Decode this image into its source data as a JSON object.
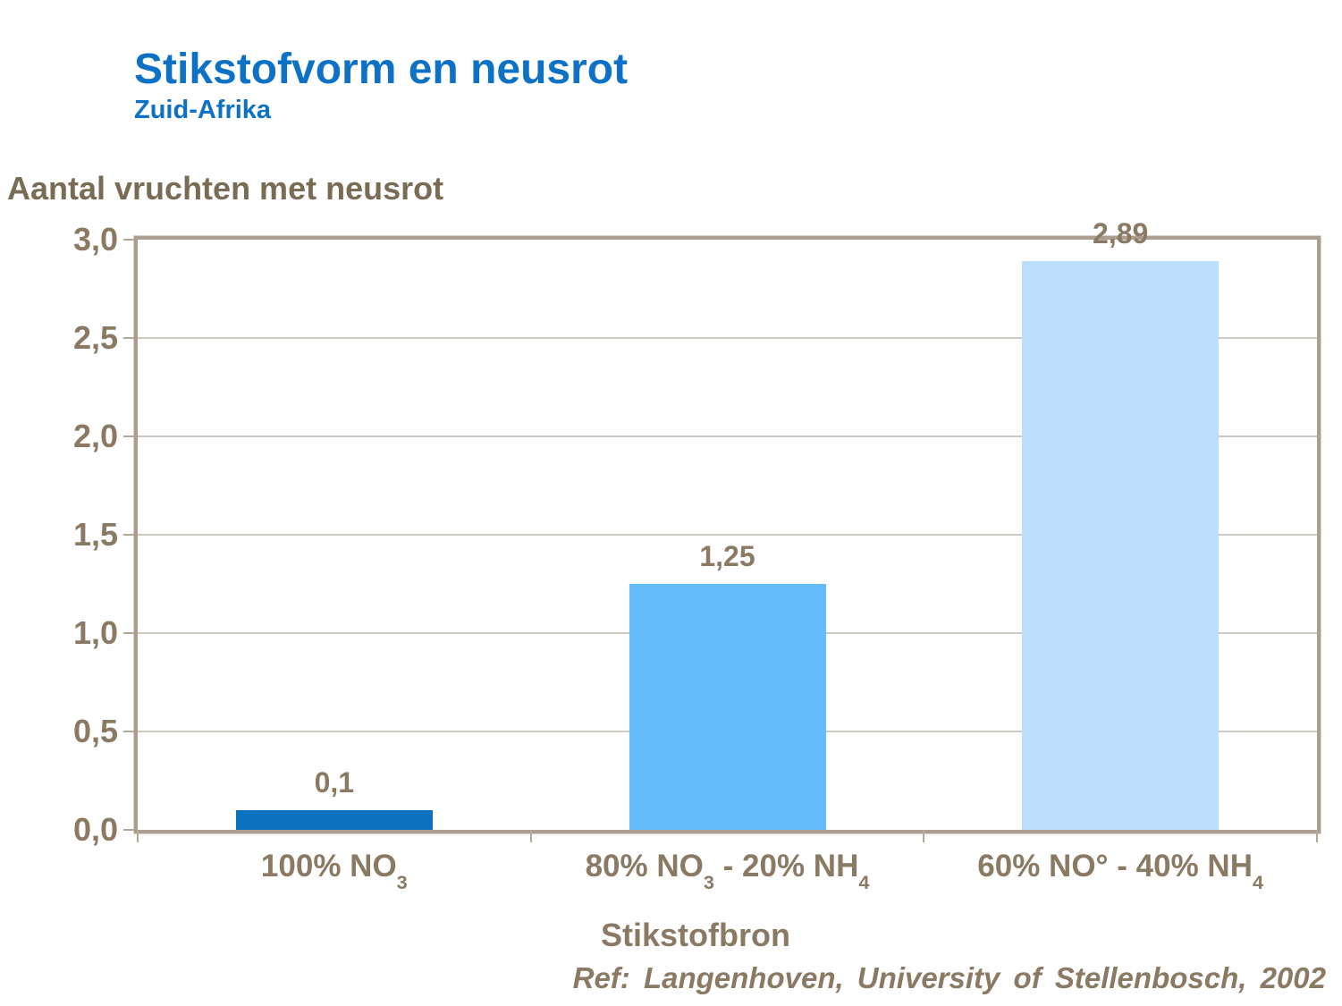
{
  "header": {
    "title": "Stikstofvorm en neusrot",
    "subtitle": "Zuid-Afrika"
  },
  "chart_data": {
    "type": "bar",
    "ylabel": "Aantal vruchten met neusrot",
    "xlabel": "Stikstofbron",
    "ylim": [
      0,
      3
    ],
    "ytick_step": 0.5,
    "ytick_labels": [
      "0,0",
      "0,5",
      "1,0",
      "1,5",
      "2,0",
      "2,5",
      "3,0"
    ],
    "grid": "horizontal",
    "legend": "none",
    "categories_text": [
      "100% NO₃",
      "80% NO₃ - 20% NH₄",
      "60% NO° - 40% NH₄"
    ],
    "categories_rich": [
      [
        {
          "text": "100% NO"
        },
        {
          "sub": "3"
        }
      ],
      [
        {
          "text": "80% NO"
        },
        {
          "sub": "3"
        },
        {
          "text": " - 20% NH"
        },
        {
          "sub": "4"
        }
      ],
      [
        {
          "text": "60% NO° - 40% NH"
        },
        {
          "sub": "4"
        }
      ]
    ],
    "values": [
      0.1,
      1.25,
      2.89
    ],
    "value_labels": [
      "0,1",
      "1,25",
      "2,89"
    ],
    "bar_colors": [
      "#0b72c0",
      "#64bcfb",
      "#badefb"
    ]
  },
  "footer": {
    "reference": "Ref: Langenhoven, University of Stellenbosch, 2002"
  },
  "colors": {
    "title_blue": "#0d72c6",
    "text_brown": "#8a7a63",
    "heading_brown": "#796c55",
    "plot_border": "#ab9e90",
    "plot_border_light": "#d9d3ca",
    "gridline": "#cdc9c3",
    "background": "#ffffff"
  }
}
